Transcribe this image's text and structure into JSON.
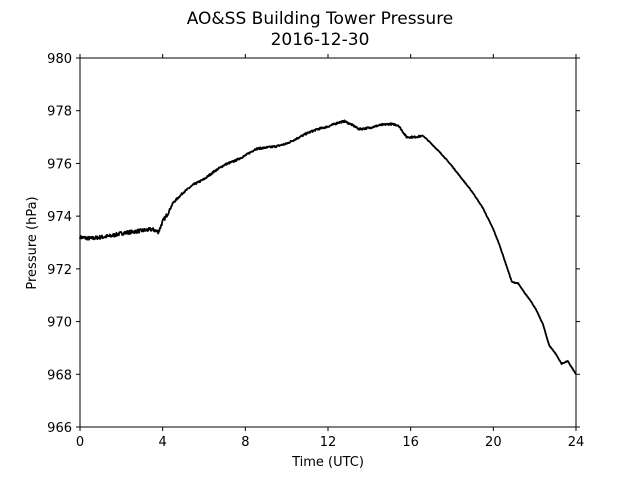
{
  "chart_data": {
    "type": "line",
    "title": "AO&SS Building Tower Pressure",
    "subtitle": "2016-12-30",
    "xlabel": "Time (UTC)",
    "ylabel": "Pressure (hPa)",
    "xlim": [
      0,
      24
    ],
    "ylim": [
      966,
      980
    ],
    "xticks": [
      0,
      4,
      8,
      12,
      16,
      20,
      24
    ],
    "yticks": [
      966,
      968,
      970,
      972,
      974,
      976,
      978,
      980
    ],
    "grid": false,
    "series_color": "#000000",
    "series": [
      {
        "x": [
          0,
          0.5,
          1,
          1.5,
          2,
          2.5,
          3,
          3.5,
          3.8,
          4,
          4.25,
          4.5,
          5,
          5.5,
          6,
          6.5,
          7,
          7.5,
          8,
          8.5,
          9,
          9.5,
          10,
          10.5,
          11,
          11.5,
          12,
          12.5,
          12.8,
          13.2,
          13.5,
          14,
          14.5,
          15,
          15.4,
          15.8,
          16.2,
          16.6,
          17,
          17.5,
          18,
          18.5,
          19,
          19.5,
          20,
          20.3,
          20.6,
          20.9,
          21.2,
          21.5,
          21.8,
          22.1,
          22.4,
          22.7,
          23.0,
          23.3,
          23.6,
          24.0
        ],
        "y": [
          973.2,
          973.15,
          973.2,
          973.25,
          973.35,
          973.4,
          973.45,
          973.5,
          973.4,
          973.8,
          974.1,
          974.5,
          974.9,
          975.2,
          975.4,
          975.7,
          975.95,
          976.1,
          976.3,
          976.55,
          976.6,
          976.65,
          976.75,
          976.95,
          977.15,
          977.3,
          977.4,
          977.55,
          977.6,
          977.45,
          977.3,
          977.35,
          977.45,
          977.5,
          977.45,
          977.0,
          977.0,
          977.05,
          976.75,
          976.35,
          975.9,
          975.4,
          974.9,
          974.3,
          973.5,
          972.9,
          972.2,
          971.5,
          971.45,
          971.1,
          970.8,
          970.4,
          969.9,
          969.1,
          968.8,
          968.4,
          968.5,
          968.0
        ]
      }
    ]
  }
}
